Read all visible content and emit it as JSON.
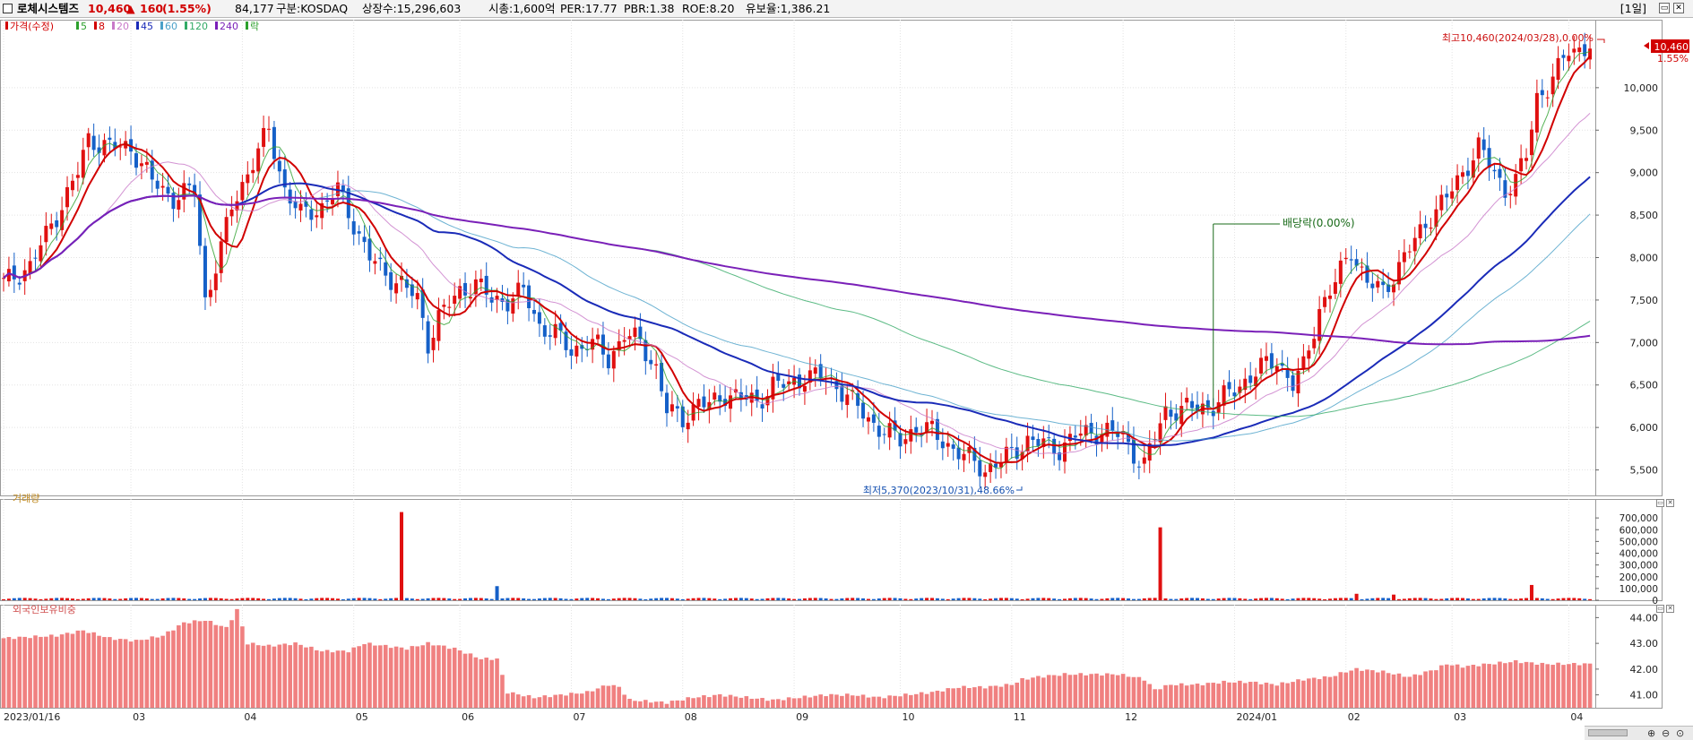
{
  "header": {
    "name": "로체시스템즈",
    "price": "10,460",
    "change_arrow": "▲",
    "change": "160",
    "change_pct": "(1.55%)",
    "volume": "84,177",
    "market": "구분:KOSDAQ",
    "shares": "상장수:15,296,603",
    "mktcap": "시총:1,600억",
    "per": "PER:17.77",
    "pbr": "PBR:1.38",
    "roe": "ROE:8.20",
    "float": "유보율:1,386.21",
    "period": "[1일]"
  },
  "price_panel": {
    "legend": [
      {
        "label": "가격(수정)",
        "color": "#d10000"
      },
      {
        "label": "5",
        "color": "#2ca02c"
      },
      {
        "label": "8",
        "color": "#d10000"
      },
      {
        "label": "20",
        "color": "#c878c8"
      },
      {
        "label": "45",
        "color": "#1a2bb8"
      },
      {
        "label": "60",
        "color": "#4aa0c8"
      },
      {
        "label": "120",
        "color": "#33aa66"
      },
      {
        "label": "240",
        "color": "#7a20b8"
      },
      {
        "label": "락",
        "color": "#2ca02c"
      }
    ],
    "high_annotation": "최고10,460(2024/03/28),0.00%",
    "low_annotation": "최저5,370(2023/10/31),48.66%",
    "dividend_annotation": "배당락(0.00%)",
    "current_price_tag": "10,460",
    "current_pct_tag": "1.55%"
  },
  "volume_panel": {
    "title": "거래량"
  },
  "foreign_panel": {
    "title": "외국인보유비중"
  },
  "colors": {
    "up": "#e01010",
    "down": "#1560c8",
    "grid": "#e3e3e3"
  },
  "chart_data": {
    "type": "candlestick",
    "title": "로체시스템즈",
    "xlabel": "",
    "ylabel": "",
    "x_axis": {
      "labels": [
        "2023/01/16",
        "03",
        "04",
        "05",
        "06",
        "07",
        "08",
        "09",
        "10",
        "11",
        "12",
        "2024/01",
        "02",
        "03",
        "04"
      ],
      "bar_index": [
        0,
        24,
        45,
        66,
        86,
        107,
        128,
        149,
        169,
        190,
        211,
        232,
        253,
        273,
        295
      ]
    },
    "price_axis": {
      "ticks": [
        5500,
        6000,
        6500,
        7000,
        7500,
        8000,
        8500,
        9000,
        9500,
        10000
      ],
      "range": [
        5200,
        10800
      ]
    },
    "close_series": [
      [
        0,
        7700
      ],
      [
        5,
        7900
      ],
      [
        10,
        8500
      ],
      [
        14,
        9000
      ],
      [
        16,
        9400
      ],
      [
        20,
        9300
      ],
      [
        24,
        9300
      ],
      [
        28,
        8900
      ],
      [
        32,
        8700
      ],
      [
        36,
        8800
      ],
      [
        38,
        7500
      ],
      [
        41,
        8100
      ],
      [
        43,
        8600
      ],
      [
        46,
        9000
      ],
      [
        50,
        9500
      ],
      [
        53,
        8800
      ],
      [
        56,
        8500
      ],
      [
        60,
        8600
      ],
      [
        63,
        8800
      ],
      [
        66,
        8400
      ],
      [
        69,
        8000
      ],
      [
        72,
        7800
      ],
      [
        75,
        7700
      ],
      [
        78,
        7500
      ],
      [
        80,
        7000
      ],
      [
        82,
        7300
      ],
      [
        84,
        7450
      ],
      [
        86,
        7600
      ],
      [
        89,
        7700
      ],
      [
        92,
        7500
      ],
      [
        95,
        7500
      ],
      [
        98,
        7600
      ],
      [
        101,
        7200
      ],
      [
        104,
        7100
      ],
      [
        107,
        6900
      ],
      [
        110,
        7000
      ],
      [
        112,
        6950
      ],
      [
        114,
        6800
      ],
      [
        117,
        7100
      ],
      [
        120,
        7000
      ],
      [
        123,
        6700
      ],
      [
        125,
        6200
      ],
      [
        128,
        6100
      ],
      [
        131,
        6300
      ],
      [
        133,
        6250
      ],
      [
        136,
        6400
      ],
      [
        139,
        6350
      ],
      [
        142,
        6300
      ],
      [
        145,
        6500
      ],
      [
        148,
        6500
      ],
      [
        151,
        6600
      ],
      [
        154,
        6600
      ],
      [
        157,
        6500
      ],
      [
        160,
        6300
      ],
      [
        163,
        6100
      ],
      [
        166,
        5950
      ],
      [
        169,
        5850
      ],
      [
        172,
        6000
      ],
      [
        175,
        5950
      ],
      [
        178,
        5800
      ],
      [
        181,
        5650
      ],
      [
        183,
        5600
      ],
      [
        185,
        5500
      ],
      [
        188,
        5600
      ],
      [
        190,
        5700
      ],
      [
        193,
        5850
      ],
      [
        196,
        5800
      ],
      [
        199,
        5750
      ],
      [
        202,
        5900
      ],
      [
        205,
        5950
      ],
      [
        208,
        5950
      ],
      [
        211,
        5900
      ],
      [
        213,
        5700
      ],
      [
        215,
        5550
      ],
      [
        217,
        5900
      ],
      [
        219,
        6200
      ],
      [
        222,
        6200
      ],
      [
        225,
        6250
      ],
      [
        228,
        6250
      ],
      [
        231,
        6400
      ],
      [
        234,
        6550
      ],
      [
        237,
        6700
      ],
      [
        240,
        6800
      ],
      [
        243,
        6500
      ],
      [
        245,
        6700
      ],
      [
        248,
        7400
      ],
      [
        251,
        7700
      ],
      [
        254,
        8100
      ],
      [
        257,
        7700
      ],
      [
        260,
        7600
      ],
      [
        263,
        7900
      ],
      [
        266,
        8200
      ],
      [
        269,
        8500
      ],
      [
        272,
        8700
      ],
      [
        275,
        9000
      ],
      [
        278,
        9300
      ],
      [
        280,
        9100
      ],
      [
        283,
        8800
      ],
      [
        285,
        8900
      ],
      [
        287,
        9200
      ],
      [
        289,
        9900
      ],
      [
        291,
        10000
      ],
      [
        293,
        10200
      ],
      [
        295,
        10460
      ]
    ],
    "volume_axis": {
      "ticks": [
        "700,000",
        "600,000",
        "500,000",
        "400,000",
        "300,000",
        "200,000",
        "100,000",
        "0"
      ],
      "range": [
        0,
        800000
      ]
    },
    "volume_spikes": [
      {
        "bar": 75,
        "value": 750000,
        "up": true
      },
      {
        "bar": 218,
        "value": 620000,
        "up": true
      },
      {
        "bar": 93,
        "value": 120000,
        "up": false
      },
      {
        "bar": 288,
        "value": 130000,
        "up": true
      },
      {
        "bar": 255,
        "value": 55000,
        "up": true
      },
      {
        "bar": 262,
        "value": 48000,
        "up": true
      }
    ],
    "foreign_axis": {
      "ticks": [
        "44.00",
        "43.00",
        "42.00",
        "41.00"
      ],
      "range": [
        40.5,
        44.5
      ]
    },
    "foreign_series": [
      [
        0,
        43.2
      ],
      [
        10,
        43.3
      ],
      [
        15,
        43.5
      ],
      [
        20,
        43.2
      ],
      [
        25,
        43.1
      ],
      [
        30,
        43.3
      ],
      [
        34,
        43.8
      ],
      [
        38,
        43.9
      ],
      [
        42,
        43.6
      ],
      [
        44,
        44.3
      ],
      [
        46,
        43.0
      ],
      [
        50,
        42.9
      ],
      [
        55,
        43.0
      ],
      [
        60,
        42.7
      ],
      [
        65,
        42.7
      ],
      [
        68,
        43.0
      ],
      [
        72,
        42.9
      ],
      [
        76,
        42.8
      ],
      [
        80,
        43.0
      ],
      [
        85,
        42.8
      ],
      [
        90,
        42.4
      ],
      [
        93,
        42.4
      ],
      [
        95,
        41.1
      ],
      [
        100,
        40.9
      ],
      [
        105,
        41.0
      ],
      [
        110,
        41.1
      ],
      [
        114,
        41.4
      ],
      [
        116,
        41.3
      ],
      [
        118,
        40.8
      ],
      [
        125,
        40.7
      ],
      [
        130,
        40.9
      ],
      [
        135,
        41.0
      ],
      [
        140,
        40.9
      ],
      [
        145,
        40.8
      ],
      [
        150,
        40.9
      ],
      [
        155,
        41.0
      ],
      [
        160,
        41.0
      ],
      [
        165,
        40.9
      ],
      [
        170,
        41.0
      ],
      [
        175,
        41.1
      ],
      [
        180,
        41.3
      ],
      [
        185,
        41.3
      ],
      [
        190,
        41.4
      ],
      [
        192,
        41.6
      ],
      [
        195,
        41.7
      ],
      [
        200,
        41.8
      ],
      [
        205,
        41.8
      ],
      [
        210,
        41.8
      ],
      [
        213,
        41.7
      ],
      [
        215,
        41.6
      ],
      [
        217,
        41.2
      ],
      [
        220,
        41.4
      ],
      [
        225,
        41.4
      ],
      [
        230,
        41.5
      ],
      [
        235,
        41.5
      ],
      [
        240,
        41.4
      ],
      [
        245,
        41.6
      ],
      [
        250,
        41.7
      ],
      [
        253,
        41.9
      ],
      [
        255,
        42.0
      ],
      [
        260,
        41.9
      ],
      [
        265,
        41.7
      ],
      [
        270,
        42.0
      ],
      [
        272,
        42.2
      ],
      [
        275,
        42.1
      ],
      [
        280,
        42.2
      ],
      [
        285,
        42.3
      ],
      [
        290,
        42.2
      ],
      [
        295,
        42.2
      ]
    ],
    "moving_averages": [
      {
        "name": "5",
        "color": "#2ca02c",
        "period": 5
      },
      {
        "name": "8",
        "color": "#d10000",
        "period": 8
      },
      {
        "name": "20",
        "color": "#c878c8",
        "period": 20
      },
      {
        "name": "45",
        "color": "#1a2bb8",
        "period": 45
      },
      {
        "name": "60",
        "color": "#4aa0c8",
        "period": 60
      },
      {
        "name": "120",
        "color": "#33aa66",
        "period": 120
      },
      {
        "name": "240",
        "color": "#7a20b8",
        "period": 240
      }
    ],
    "grid": true,
    "legend_position": "top-left"
  }
}
